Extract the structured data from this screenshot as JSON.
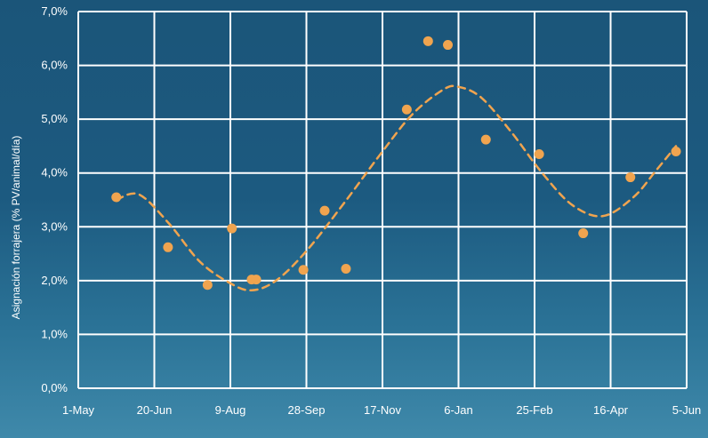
{
  "chart_data": {
    "type": "scatter",
    "title": "",
    "xlabel": "",
    "ylabel": "Asignación forrajera (% PV/animal/día)",
    "x_tick_labels": [
      "1-May",
      "20-Jun",
      "9-Aug",
      "28-Sep",
      "17-Nov",
      "6-Jan",
      "25-Feb",
      "16-Apr",
      "5-Jun"
    ],
    "y_tick_labels": [
      "0,0%",
      "1,0%",
      "2,0%",
      "3,0%",
      "4,0%",
      "5,0%",
      "6,0%",
      "7,0%"
    ],
    "xlim_days": [
      0,
      400
    ],
    "ylim": [
      0,
      7
    ],
    "grid": true,
    "points": [
      {
        "x_days": 25,
        "y": 3.55
      },
      {
        "x_days": 59,
        "y": 2.62
      },
      {
        "x_days": 85,
        "y": 1.92
      },
      {
        "x_days": 101,
        "y": 2.97
      },
      {
        "x_days": 114,
        "y": 2.02
      },
      {
        "x_days": 117,
        "y": 2.02
      },
      {
        "x_days": 148,
        "y": 2.2
      },
      {
        "x_days": 162,
        "y": 3.3
      },
      {
        "x_days": 176,
        "y": 2.22
      },
      {
        "x_days": 216,
        "y": 5.18
      },
      {
        "x_days": 230,
        "y": 6.45
      },
      {
        "x_days": 243,
        "y": 6.38
      },
      {
        "x_days": 268,
        "y": 4.62
      },
      {
        "x_days": 303,
        "y": 4.35
      },
      {
        "x_days": 332,
        "y": 2.88
      },
      {
        "x_days": 363,
        "y": 3.92
      },
      {
        "x_days": 393,
        "y": 4.4
      }
    ],
    "trend": [
      {
        "x_days": 25,
        "y": 3.5
      },
      {
        "x_days": 40,
        "y": 3.6
      },
      {
        "x_days": 60,
        "y": 3.05
      },
      {
        "x_days": 80,
        "y": 2.35
      },
      {
        "x_days": 100,
        "y": 1.95
      },
      {
        "x_days": 114,
        "y": 1.82
      },
      {
        "x_days": 130,
        "y": 2.0
      },
      {
        "x_days": 150,
        "y": 2.55
      },
      {
        "x_days": 175,
        "y": 3.45
      },
      {
        "x_days": 200,
        "y": 4.4
      },
      {
        "x_days": 220,
        "y": 5.1
      },
      {
        "x_days": 240,
        "y": 5.55
      },
      {
        "x_days": 250,
        "y": 5.6
      },
      {
        "x_days": 265,
        "y": 5.4
      },
      {
        "x_days": 285,
        "y": 4.75
      },
      {
        "x_days": 305,
        "y": 4.0
      },
      {
        "x_days": 325,
        "y": 3.4
      },
      {
        "x_days": 345,
        "y": 3.2
      },
      {
        "x_days": 365,
        "y": 3.55
      },
      {
        "x_days": 380,
        "y": 4.05
      },
      {
        "x_days": 393,
        "y": 4.5
      }
    ],
    "colors": {
      "points": "#f0a44f",
      "trend": "#f0a44f",
      "grid": "#ffffff",
      "text": "#ffffff"
    }
  }
}
